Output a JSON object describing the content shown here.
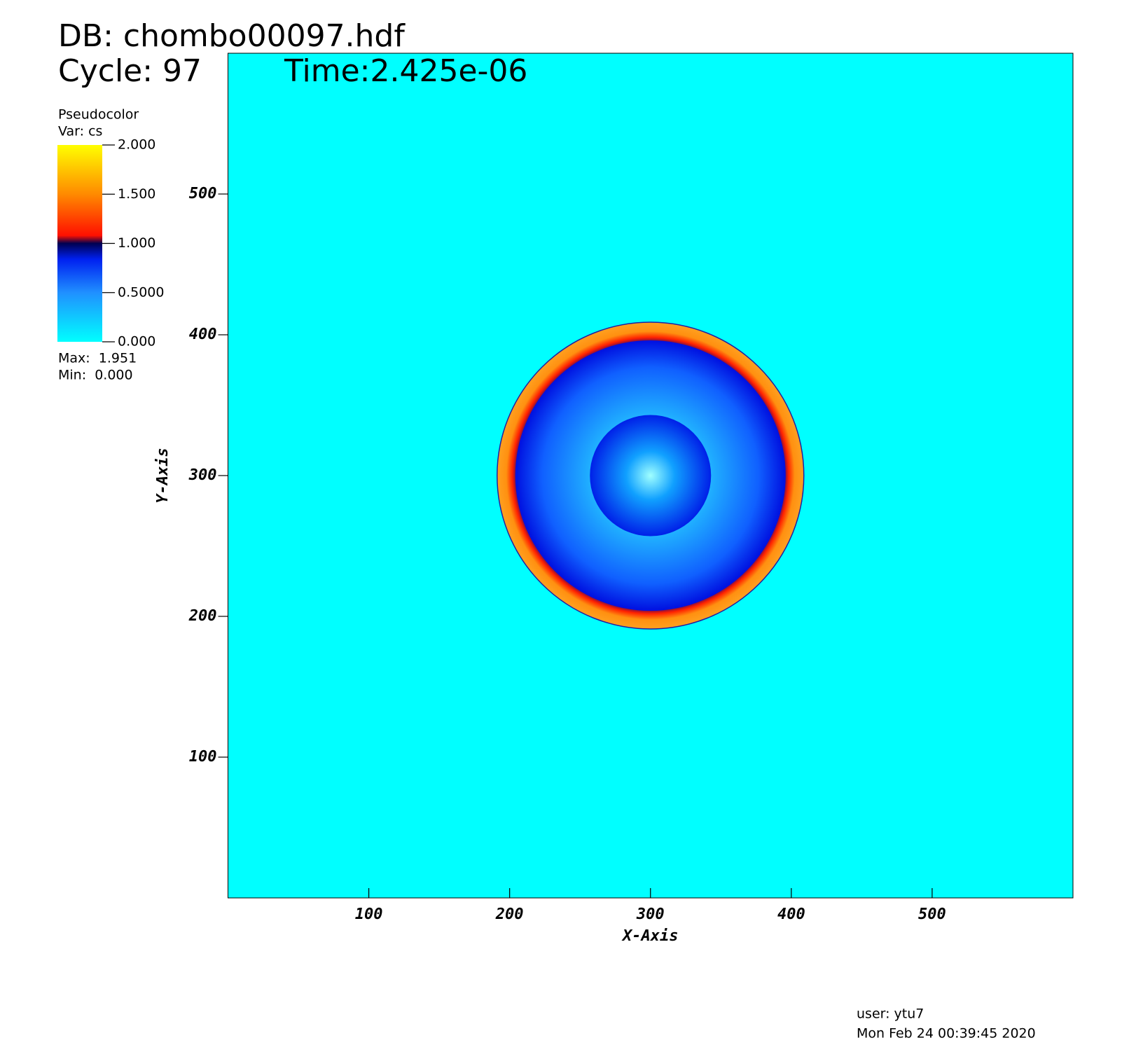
{
  "chart_data": {
    "type": "pseudocolor",
    "db": "DB: chombo00097.hdf",
    "cycle": "Cycle: 97",
    "time": "Time:2.425e-06",
    "xlabel": "X-Axis",
    "ylabel": "Y-Axis",
    "xlim": [
      0,
      600
    ],
    "ylim": [
      0,
      600
    ],
    "xticks": [
      100,
      200,
      300,
      400,
      500
    ],
    "yticks": [
      100,
      200,
      300,
      400,
      500
    ],
    "background": "#00ffff",
    "legend": {
      "title": "Pseudocolor",
      "var": "Var: cs",
      "range": [
        0,
        2
      ],
      "ticks": [
        {
          "value": 0,
          "label": "0.000"
        },
        {
          "value": 0.5,
          "label": "0.5000"
        },
        {
          "value": 1,
          "label": "1.000"
        },
        {
          "value": 1.5,
          "label": "1.500"
        },
        {
          "value": 2,
          "label": "2.000"
        }
      ],
      "max": "Max:  1.951",
      "min": "Min:  0.000"
    }
  },
  "footer": {
    "user": "user: ytu7",
    "date": "Mon Feb 24 00:39:45 2020"
  }
}
